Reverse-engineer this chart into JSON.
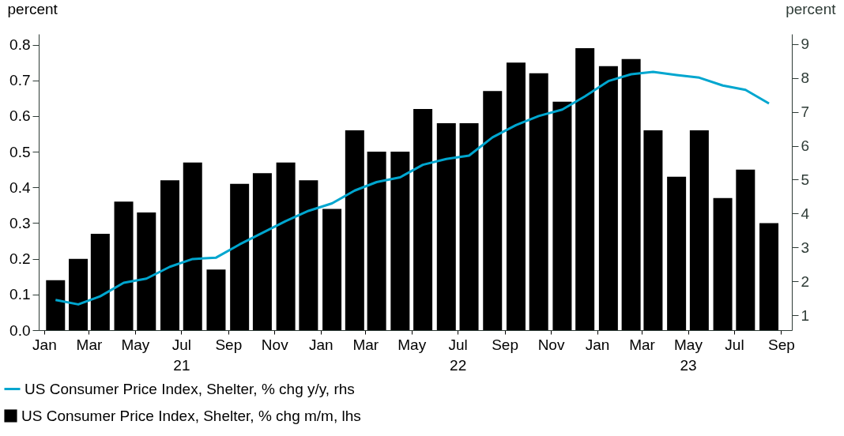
{
  "chart_data": {
    "type": "bar",
    "ylabel": "percent",
    "y2label": "percent",
    "x": [
      "2021-01-16",
      "2021-02-15",
      "2021-03-16",
      "2021-04-16",
      "2021-05-16",
      "2021-06-16",
      "2021-07-16",
      "2021-08-16",
      "2021-09-16",
      "2021-10-16",
      "2021-11-16",
      "2021-12-16",
      "2022-01-16",
      "2022-02-15",
      "2022-03-16",
      "2022-04-16",
      "2022-05-16",
      "2022-06-16",
      "2022-07-16",
      "2022-08-16",
      "2022-09-16",
      "2022-10-16",
      "2022-11-16",
      "2022-12-16",
      "2023-01-16",
      "2023-02-15",
      "2023-03-16",
      "2023-04-16",
      "2023-05-16",
      "2023-06-16",
      "2023-07-16",
      "2023-08-16"
    ],
    "series": [
      {
        "name": "US Consumer Price Index, Shelter, % chg y/y, rhs",
        "type": "line",
        "axis": "y2",
        "color": "#00a6cf",
        "values": [
          1.45,
          1.32,
          1.56,
          1.96,
          2.08,
          2.43,
          2.66,
          2.7,
          3.09,
          3.43,
          3.78,
          4.08,
          4.3,
          4.68,
          4.93,
          5.07,
          5.44,
          5.61,
          5.71,
          6.25,
          6.61,
          6.88,
          7.07,
          7.46,
          7.91,
          8.11,
          8.18,
          8.09,
          8.01,
          7.78,
          7.65,
          7.25
        ]
      },
      {
        "name": "US Consumer Price Index, Shelter, % chg m/m, lhs",
        "color": "#000000",
        "values": [
          0.14,
          0.2,
          0.27,
          0.36,
          0.33,
          0.42,
          0.47,
          0.17,
          0.41,
          0.44,
          0.47,
          0.42,
          0.34,
          0.56,
          0.5,
          0.5,
          0.62,
          0.58,
          0.58,
          0.67,
          0.75,
          0.72,
          0.64,
          0.79,
          0.74,
          0.76,
          0.56,
          0.43,
          0.56,
          0.37,
          0.45,
          0.3
        ]
      }
    ],
    "xlim": [
      "2020-12-30",
      "2023-09-10"
    ],
    "xticks": [
      {
        "value": "2021-01",
        "label": "Jan"
      },
      {
        "value": "2021-03",
        "label": "Mar"
      },
      {
        "value": "2021-05",
        "label": "May"
      },
      {
        "value": "2021-07",
        "label": "Jul\n21"
      },
      {
        "value": "2021-09",
        "label": "Sep"
      },
      {
        "value": "2021-11",
        "label": "Nov"
      },
      {
        "value": "2022-01",
        "label": "Jan"
      },
      {
        "value": "2022-03",
        "label": "Mar"
      },
      {
        "value": "2022-05",
        "label": "May"
      },
      {
        "value": "2022-07",
        "label": "Jul\n22"
      },
      {
        "value": "2022-09",
        "label": "Sep"
      },
      {
        "value": "2022-11",
        "label": "Nov"
      },
      {
        "value": "2023-01",
        "label": "Jan"
      },
      {
        "value": "2023-03",
        "label": "Mar"
      },
      {
        "value": "2023-05",
        "label": "May\n23"
      },
      {
        "value": "2023-07",
        "label": "Jul"
      },
      {
        "value": "2023-09",
        "label": "Sep"
      }
    ],
    "ylim": [
      0,
      0.83
    ],
    "yticks": [
      {
        "value": 0,
        "label": "0.0"
      },
      0.1,
      0.2,
      0.3,
      0.4,
      0.5,
      0.6,
      0.7,
      0.8
    ],
    "y2lim": [
      0.56,
      9.3
    ],
    "y2ticks": [
      1,
      2,
      3,
      4,
      5,
      6,
      7,
      8,
      9
    ],
    "grid": false,
    "legend": "bottom"
  }
}
